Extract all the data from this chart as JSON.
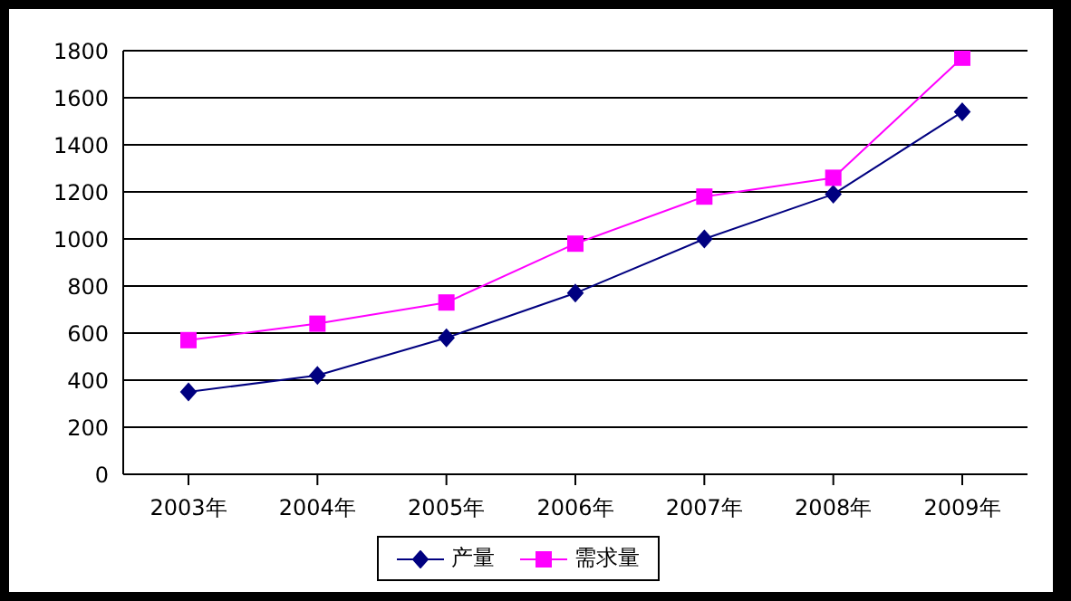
{
  "chart_data": {
    "type": "line",
    "categories": [
      "2003年",
      "2004年",
      "2005年",
      "2006年",
      "2007年",
      "2008年",
      "2009年"
    ],
    "series": [
      {
        "name": "产量",
        "color": "#000080",
        "marker": "diamond",
        "values": [
          350,
          420,
          580,
          770,
          1000,
          1190,
          1540
        ]
      },
      {
        "name": "需求量",
        "color": "#ff00ff",
        "marker": "square",
        "values": [
          570,
          640,
          730,
          980,
          1180,
          1260,
          1770
        ]
      }
    ],
    "ylim": [
      0,
      1800
    ],
    "yticks": [
      0,
      200,
      400,
      600,
      800,
      1000,
      1200,
      1400,
      1600,
      1800
    ],
    "grid": "y",
    "legend": "bottom"
  }
}
